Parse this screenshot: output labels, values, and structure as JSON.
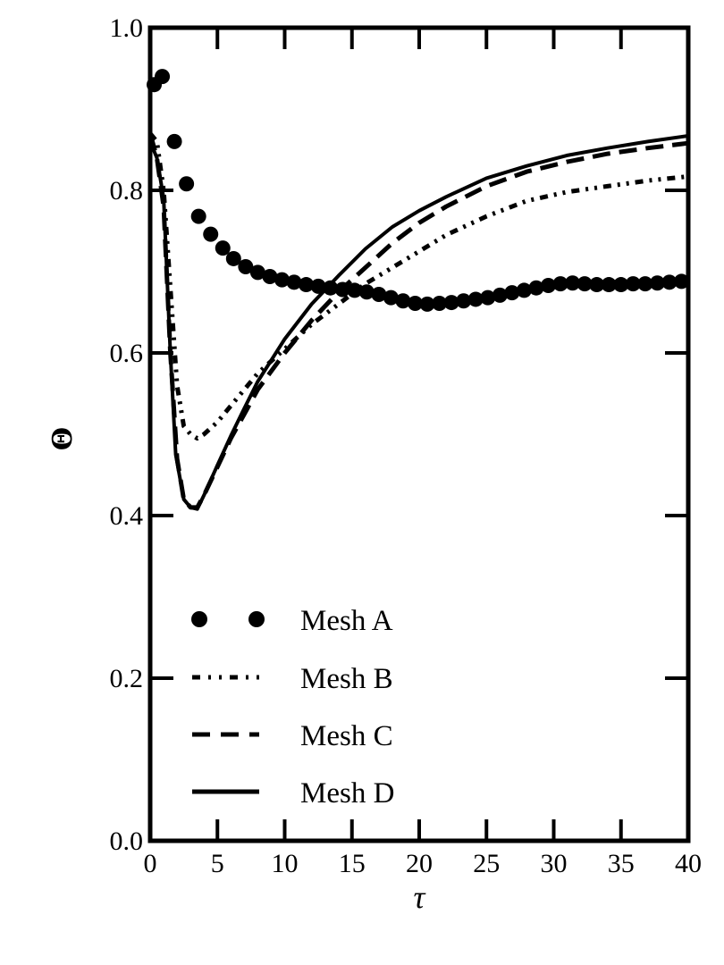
{
  "chart_data": {
    "type": "line",
    "title": "",
    "xlabel": "τ",
    "ylabel": "Θ",
    "xlim": [
      0,
      40
    ],
    "ylim": [
      0.0,
      1.0
    ],
    "xticks": [
      "0",
      "5",
      "10",
      "15",
      "20",
      "25",
      "30",
      "35",
      "40"
    ],
    "yticks": [
      "0.0",
      "0.2",
      "0.4",
      "0.6",
      "0.8",
      "1.0"
    ],
    "grid": false,
    "legend_position": "lower left",
    "series": [
      {
        "name": "Mesh A",
        "style": "markers",
        "x": [
          0.3,
          0.9,
          1.8,
          2.7,
          3.6,
          4.5,
          5.4,
          6.2,
          7.1,
          8.0,
          8.9,
          9.8,
          10.7,
          11.6,
          12.5,
          13.4,
          14.3,
          15.2,
          16.1,
          17.0,
          17.9,
          18.8,
          19.7,
          20.6,
          21.5,
          22.4,
          23.3,
          24.2,
          25.1,
          26.0,
          26.9,
          27.8,
          28.7,
          29.6,
          30.5,
          31.4,
          32.3,
          33.2,
          34.1,
          35.0,
          35.9,
          36.8,
          37.7,
          38.6,
          39.5
        ],
        "y": [
          0.93,
          0.94,
          0.86,
          0.808,
          0.768,
          0.746,
          0.729,
          0.716,
          0.706,
          0.699,
          0.694,
          0.69,
          0.687,
          0.684,
          0.682,
          0.68,
          0.678,
          0.677,
          0.675,
          0.672,
          0.668,
          0.664,
          0.661,
          0.66,
          0.661,
          0.662,
          0.664,
          0.666,
          0.668,
          0.671,
          0.674,
          0.677,
          0.68,
          0.683,
          0.685,
          0.686,
          0.685,
          0.684,
          0.684,
          0.684,
          0.685,
          0.685,
          0.686,
          0.687,
          0.688
        ]
      },
      {
        "name": "Mesh B",
        "style": "dash-dot-dot",
        "x": [
          0,
          0.5,
          1.0,
          1.5,
          2.0,
          2.5,
          3.0,
          3.5,
          4.0,
          5.0,
          6.0,
          7.0,
          8.0,
          10.0,
          12.0,
          14.0,
          16.0,
          18.0,
          20.0,
          22.0,
          25.0,
          28.0,
          31.0,
          34.0,
          37.0,
          40.0
        ],
        "y": [
          0.87,
          0.86,
          0.8,
          0.68,
          0.56,
          0.51,
          0.5,
          0.495,
          0.5,
          0.515,
          0.535,
          0.555,
          0.575,
          0.605,
          0.635,
          0.66,
          0.685,
          0.705,
          0.725,
          0.745,
          0.768,
          0.787,
          0.798,
          0.805,
          0.812,
          0.817
        ]
      },
      {
        "name": "Mesh C",
        "style": "dashed",
        "x": [
          0,
          0.5,
          1.0,
          1.5,
          2.0,
          2.5,
          3.0,
          3.5,
          4.0,
          5.0,
          6.0,
          7.0,
          8.0,
          10.0,
          12.0,
          14.0,
          16.0,
          18.0,
          20.0,
          22.0,
          25.0,
          28.0,
          31.0,
          34.0,
          37.0,
          40.0
        ],
        "y": [
          0.87,
          0.84,
          0.78,
          0.6,
          0.47,
          0.42,
          0.41,
          0.41,
          0.425,
          0.46,
          0.495,
          0.525,
          0.555,
          0.6,
          0.64,
          0.675,
          0.705,
          0.735,
          0.76,
          0.78,
          0.805,
          0.823,
          0.835,
          0.845,
          0.852,
          0.858
        ]
      },
      {
        "name": "Mesh D",
        "style": "solid",
        "x": [
          0,
          0.5,
          1.0,
          1.5,
          1.9,
          2.5,
          3.0,
          3.5,
          4.0,
          5.0,
          6.0,
          7.0,
          8.0,
          10.0,
          12.0,
          14.0,
          16.0,
          18.0,
          20.0,
          22.0,
          25.0,
          28.0,
          31.0,
          34.0,
          37.0,
          40.0
        ],
        "y": [
          0.86,
          0.84,
          0.79,
          0.6,
          0.475,
          0.42,
          0.41,
          0.408,
          0.425,
          0.462,
          0.498,
          0.532,
          0.565,
          0.617,
          0.66,
          0.695,
          0.728,
          0.755,
          0.775,
          0.792,
          0.815,
          0.83,
          0.843,
          0.852,
          0.86,
          0.867
        ]
      }
    ]
  },
  "legend": {
    "items": [
      {
        "label": "Mesh A",
        "symbol": "markers"
      },
      {
        "label": "Mesh B",
        "symbol": "dash-dot-dot"
      },
      {
        "label": "Mesh C",
        "symbol": "dashed"
      },
      {
        "label": "Mesh D",
        "symbol": "solid"
      }
    ]
  },
  "colors": {
    "foreground": "#000000",
    "background": "#ffffff"
  }
}
